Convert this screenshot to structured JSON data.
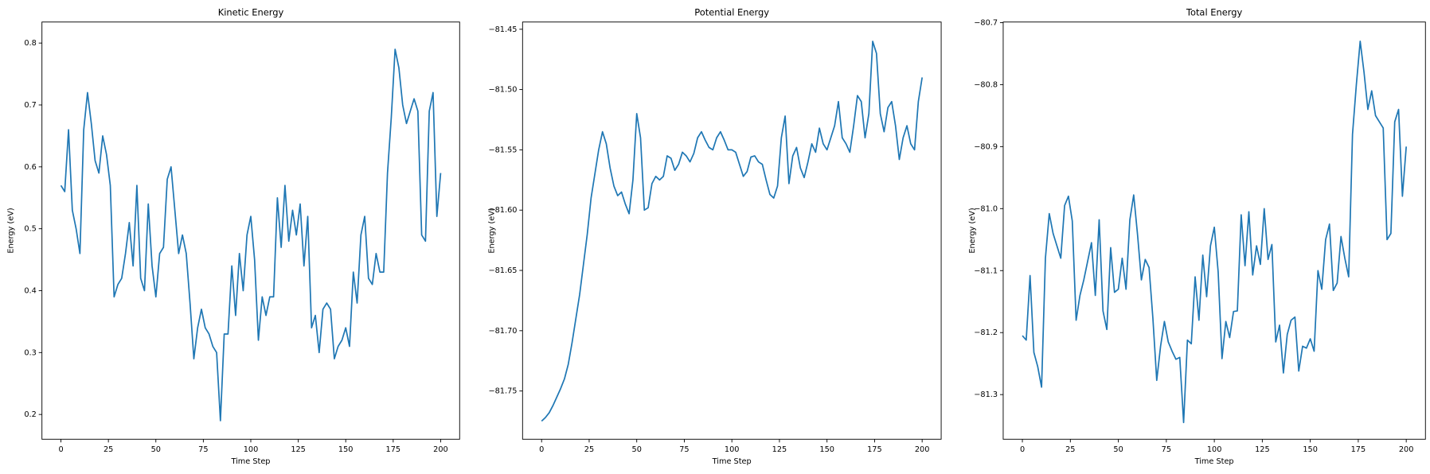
{
  "chart_data": [
    {
      "type": "line",
      "title": "Kinetic Energy",
      "x_label": "Time Step",
      "y_label": "Energy (eV)",
      "color": "#1f77b4",
      "xlim": [
        -10,
        210
      ],
      "xticks": [
        0,
        25,
        50,
        75,
        100,
        125,
        150,
        175,
        200
      ],
      "ylim": [
        0.16,
        0.834
      ],
      "yticks": [
        0.2,
        0.3,
        0.4,
        0.5,
        0.6,
        0.7,
        0.8
      ],
      "x": [
        0,
        2,
        4,
        6,
        8,
        10,
        12,
        14,
        16,
        18,
        20,
        22,
        24,
        26,
        28,
        30,
        32,
        34,
        36,
        38,
        40,
        42,
        44,
        46,
        48,
        50,
        52,
        54,
        56,
        58,
        60,
        62,
        64,
        66,
        68,
        70,
        72,
        74,
        76,
        78,
        80,
        82,
        84,
        86,
        88,
        90,
        92,
        94,
        96,
        98,
        100,
        102,
        104,
        106,
        108,
        110,
        112,
        114,
        116,
        118,
        120,
        122,
        124,
        126,
        128,
        130,
        132,
        134,
        136,
        138,
        140,
        142,
        144,
        146,
        148,
        150,
        152,
        154,
        156,
        158,
        160,
        162,
        164,
        166,
        168,
        170,
        172,
        174,
        176,
        178,
        180,
        182,
        184,
        186,
        188,
        190,
        192,
        194,
        196,
        198,
        200
      ],
      "values": [
        0.57,
        0.56,
        0.66,
        0.53,
        0.5,
        0.46,
        0.66,
        0.72,
        0.67,
        0.61,
        0.59,
        0.65,
        0.62,
        0.57,
        0.39,
        0.41,
        0.42,
        0.46,
        0.51,
        0.44,
        0.57,
        0.42,
        0.4,
        0.54,
        0.44,
        0.39,
        0.46,
        0.47,
        0.58,
        0.6,
        0.53,
        0.46,
        0.49,
        0.46,
        0.38,
        0.29,
        0.34,
        0.37,
        0.34,
        0.33,
        0.31,
        0.3,
        0.19,
        0.33,
        0.33,
        0.44,
        0.36,
        0.46,
        0.4,
        0.49,
        0.52,
        0.45,
        0.32,
        0.39,
        0.36,
        0.39,
        0.39,
        0.55,
        0.47,
        0.57,
        0.48,
        0.53,
        0.49,
        0.54,
        0.44,
        0.52,
        0.34,
        0.36,
        0.3,
        0.37,
        0.38,
        0.37,
        0.29,
        0.31,
        0.32,
        0.34,
        0.31,
        0.43,
        0.38,
        0.49,
        0.52,
        0.42,
        0.41,
        0.46,
        0.43,
        0.43,
        0.59,
        0.68,
        0.79,
        0.76,
        0.7,
        0.67,
        0.69,
        0.71,
        0.69,
        0.49,
        0.48,
        0.69,
        0.72,
        0.52,
        0.59
      ]
    },
    {
      "type": "line",
      "title": "Potential Energy",
      "x_label": "Time Step",
      "y_label": "Energy (eV)",
      "color": "#1f77b4",
      "xlim": [
        -10,
        210
      ],
      "xticks": [
        0,
        25,
        50,
        75,
        100,
        125,
        150,
        175,
        200
      ],
      "ylim": [
        -81.79,
        -81.444
      ],
      "yticks": [
        {
          "value": -81.75,
          "label": "−81.75"
        },
        {
          "value": -81.7,
          "label": "−81.70"
        },
        {
          "value": -81.65,
          "label": "−81.65"
        },
        {
          "value": -81.6,
          "label": "−81.60"
        },
        {
          "value": -81.55,
          "label": "−81.55"
        },
        {
          "value": -81.5,
          "label": "−81.50"
        },
        {
          "value": -81.45,
          "label": "−81.45"
        }
      ],
      "x": [
        0,
        2,
        4,
        6,
        8,
        10,
        12,
        14,
        16,
        18,
        20,
        22,
        24,
        26,
        28,
        30,
        32,
        34,
        36,
        38,
        40,
        42,
        44,
        46,
        48,
        50,
        52,
        54,
        56,
        58,
        60,
        62,
        64,
        66,
        68,
        70,
        72,
        74,
        76,
        78,
        80,
        82,
        84,
        86,
        88,
        90,
        92,
        94,
        96,
        98,
        100,
        102,
        104,
        106,
        108,
        110,
        112,
        114,
        116,
        118,
        120,
        122,
        124,
        126,
        128,
        130,
        132,
        134,
        136,
        138,
        140,
        142,
        144,
        146,
        148,
        150,
        152,
        154,
        156,
        158,
        160,
        162,
        164,
        166,
        168,
        170,
        172,
        174,
        176,
        178,
        180,
        182,
        184,
        186,
        188,
        190,
        192,
        194,
        196,
        198,
        200
      ],
      "values": [
        -81.775,
        -81.772,
        -81.768,
        -81.762,
        -81.755,
        -81.748,
        -81.74,
        -81.728,
        -81.71,
        -81.69,
        -81.67,
        -81.645,
        -81.62,
        -81.59,
        -81.57,
        -81.55,
        -81.535,
        -81.545,
        -81.565,
        -81.58,
        -81.588,
        -81.585,
        -81.595,
        -81.603,
        -81.575,
        -81.52,
        -81.54,
        -81.6,
        -81.598,
        -81.578,
        -81.572,
        -81.575,
        -81.572,
        -81.555,
        -81.557,
        -81.567,
        -81.562,
        -81.552,
        -81.555,
        -81.56,
        -81.553,
        -81.54,
        -81.535,
        -81.542,
        -81.548,
        -81.55,
        -81.54,
        -81.535,
        -81.542,
        -81.55,
        -81.55,
        -81.552,
        -81.562,
        -81.572,
        -81.568,
        -81.556,
        -81.555,
        -81.56,
        -81.562,
        -81.575,
        -81.587,
        -81.59,
        -81.58,
        -81.54,
        -81.522,
        -81.578,
        -81.555,
        -81.548,
        -81.565,
        -81.573,
        -81.56,
        -81.545,
        -81.552,
        -81.532,
        -81.545,
        -81.55,
        -81.54,
        -81.53,
        -81.51,
        -81.54,
        -81.545,
        -81.552,
        -81.53,
        -81.505,
        -81.51,
        -81.54,
        -81.52,
        -81.46,
        -81.47,
        -81.52,
        -81.535,
        -81.515,
        -81.51,
        -81.53,
        -81.558,
        -81.54,
        -81.53,
        -81.545,
        -81.55,
        -81.51,
        -81.49
      ]
    },
    {
      "type": "line",
      "title": "Total Energy",
      "x_label": "Time Step",
      "y_label": "Energy (eV)",
      "color": "#1f77b4",
      "xlim": [
        -10,
        210
      ],
      "xticks": [
        0,
        25,
        50,
        75,
        100,
        125,
        150,
        175,
        200
      ],
      "ylim": [
        -81.372,
        -80.699
      ],
      "yticks": [
        {
          "value": -81.3,
          "label": "−81.3"
        },
        {
          "value": -81.2,
          "label": "−81.2"
        },
        {
          "value": -81.1,
          "label": "−81.1"
        },
        {
          "value": -81.0,
          "label": "−81.0"
        },
        {
          "value": -80.9,
          "label": "−80.9"
        },
        {
          "value": -80.8,
          "label": "−80.8"
        },
        {
          "value": -80.7,
          "label": "−80.7"
        }
      ],
      "x": [
        0,
        2,
        4,
        6,
        8,
        10,
        12,
        14,
        16,
        18,
        20,
        22,
        24,
        26,
        28,
        30,
        32,
        34,
        36,
        38,
        40,
        42,
        44,
        46,
        48,
        50,
        52,
        54,
        56,
        58,
        60,
        62,
        64,
        66,
        68,
        70,
        72,
        74,
        76,
        78,
        80,
        82,
        84,
        86,
        88,
        90,
        92,
        94,
        96,
        98,
        100,
        102,
        104,
        106,
        108,
        110,
        112,
        114,
        116,
        118,
        120,
        122,
        124,
        126,
        128,
        130,
        132,
        134,
        136,
        138,
        140,
        142,
        144,
        146,
        148,
        150,
        152,
        154,
        156,
        158,
        160,
        162,
        164,
        166,
        168,
        170,
        172,
        174,
        176,
        178,
        180,
        182,
        184,
        186,
        188,
        190,
        192,
        194,
        196,
        198,
        200
      ],
      "values": [
        -81.205,
        -81.212,
        -81.108,
        -81.232,
        -81.255,
        -81.288,
        -81.08,
        -81.008,
        -81.04,
        -81.06,
        -81.08,
        -80.995,
        -80.98,
        -81.02,
        -81.18,
        -81.14,
        -81.115,
        -81.085,
        -81.055,
        -81.14,
        -81.018,
        -81.165,
        -81.195,
        -81.063,
        -81.135,
        -81.13,
        -81.08,
        -81.13,
        -81.018,
        -80.978,
        -81.042,
        -81.115,
        -81.082,
        -81.095,
        -81.177,
        -81.277,
        -81.222,
        -81.182,
        -81.215,
        -81.23,
        -81.243,
        -81.24,
        -81.345,
        -81.212,
        -81.218,
        -81.11,
        -81.18,
        -81.075,
        -81.142,
        -81.06,
        -81.03,
        -81.102,
        -81.242,
        -81.182,
        -81.208,
        -81.166,
        -81.165,
        -81.01,
        -81.092,
        -81.005,
        -81.107,
        -81.06,
        -81.09,
        -81.0,
        -81.082,
        -81.058,
        -81.215,
        -81.188,
        -81.265,
        -81.203,
        -81.18,
        -81.175,
        -81.262,
        -81.222,
        -81.225,
        -81.21,
        -81.23,
        -81.1,
        -81.13,
        -81.05,
        -81.025,
        -81.132,
        -81.12,
        -81.045,
        -81.08,
        -81.11,
        -80.88,
        -80.8,
        -80.73,
        -80.78,
        -80.84,
        -80.81,
        -80.85,
        -80.86,
        -80.87,
        -81.05,
        -81.04,
        -80.86,
        -80.84,
        -80.98,
        -80.9
      ]
    }
  ]
}
